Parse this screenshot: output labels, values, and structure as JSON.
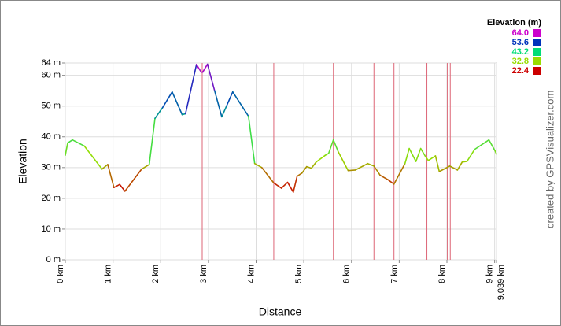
{
  "chart_data": {
    "type": "line",
    "x_label": "Distance",
    "y_label": "Elevation",
    "legend_title": "Elevation (m)",
    "credit": "created by GPSVisualizer.com",
    "xlim": [
      0,
      9.039
    ],
    "ylim": [
      0,
      64
    ],
    "xticks": [
      {
        "value": 0,
        "label": "0 km"
      },
      {
        "value": 1,
        "label": "1 km"
      },
      {
        "value": 2,
        "label": "2 km"
      },
      {
        "value": 3,
        "label": "3 km"
      },
      {
        "value": 4,
        "label": "4 km"
      },
      {
        "value": 5,
        "label": "5 km"
      },
      {
        "value": 6,
        "label": "6 km"
      },
      {
        "value": 7,
        "label": "7 km"
      },
      {
        "value": 8,
        "label": "8 km"
      },
      {
        "value": 9,
        "label": "9 km"
      },
      {
        "value": 9.039,
        "label": "9.039 km"
      }
    ],
    "yticks": [
      {
        "value": 0,
        "label": "0 m"
      },
      {
        "value": 10,
        "label": "10 m"
      },
      {
        "value": 20,
        "label": "20 m"
      },
      {
        "value": 30,
        "label": "30 m"
      },
      {
        "value": 40,
        "label": "40 m"
      },
      {
        "value": 50,
        "label": "50 m"
      },
      {
        "value": 60,
        "label": "60 m"
      },
      {
        "value": 64,
        "label": "64 m"
      }
    ],
    "grid": true,
    "color_scale": [
      {
        "value": 64,
        "label": "64.0",
        "color": "#cc00cc"
      },
      {
        "value": 53.6,
        "label": "53.6",
        "color": "#0033bb"
      },
      {
        "value": 43.2,
        "label": "43.2",
        "color": "#00dd77"
      },
      {
        "value": 32.8,
        "label": "32.8",
        "color": "#99dd00"
      },
      {
        "value": 22.4,
        "label": "22.4",
        "color": "#cc0000"
      }
    ],
    "waypoints": [
      2.87,
      4.37,
      5.62,
      6.47,
      6.89,
      7.58,
      8.01,
      8.07
    ],
    "waypoint_color": "#dd6677",
    "x": [
      0,
      0.05,
      0.15,
      0.4,
      0.77,
      0.89,
      1.02,
      1.14,
      1.25,
      1.6,
      1.76,
      1.88,
      2.04,
      2.24,
      2.45,
      2.52,
      2.75,
      2.85,
      2.88,
      2.98,
      3.13,
      3.28,
      3.38,
      3.51,
      3.84,
      3.97,
      4.12,
      4.37,
      4.53,
      4.66,
      4.78,
      4.86,
      4.96,
      5.06,
      5.16,
      5.26,
      5.45,
      5.52,
      5.62,
      5.72,
      5.93,
      6.08,
      6.34,
      6.47,
      6.6,
      6.77,
      6.89,
      7.12,
      7.21,
      7.35,
      7.45,
      7.55,
      7.61,
      7.76,
      7.84,
      8.06,
      8.22,
      8.32,
      8.42,
      8.58,
      8.88,
      9.01,
      9.039
    ],
    "values": [
      34,
      38,
      39,
      37,
      29.5,
      31,
      23.5,
      24.5,
      22.3,
      29.5,
      31,
      46,
      49.5,
      54.6,
      47.2,
      47.5,
      63.5,
      61,
      61,
      63.6,
      55,
      46.5,
      50,
      54.6,
      46.7,
      31.3,
      30,
      25,
      23.3,
      25.2,
      22,
      27.2,
      28.2,
      30.3,
      29.8,
      31.8,
      34,
      34.6,
      39,
      35.2,
      29,
      29.2,
      31.3,
      30.5,
      27.5,
      26,
      24.6,
      31.3,
      36.2,
      32,
      36.2,
      33.6,
      32.3,
      33.8,
      28.7,
      30.5,
      29.2,
      31.8,
      32,
      35.9,
      39,
      35.4,
      34.4
    ]
  }
}
